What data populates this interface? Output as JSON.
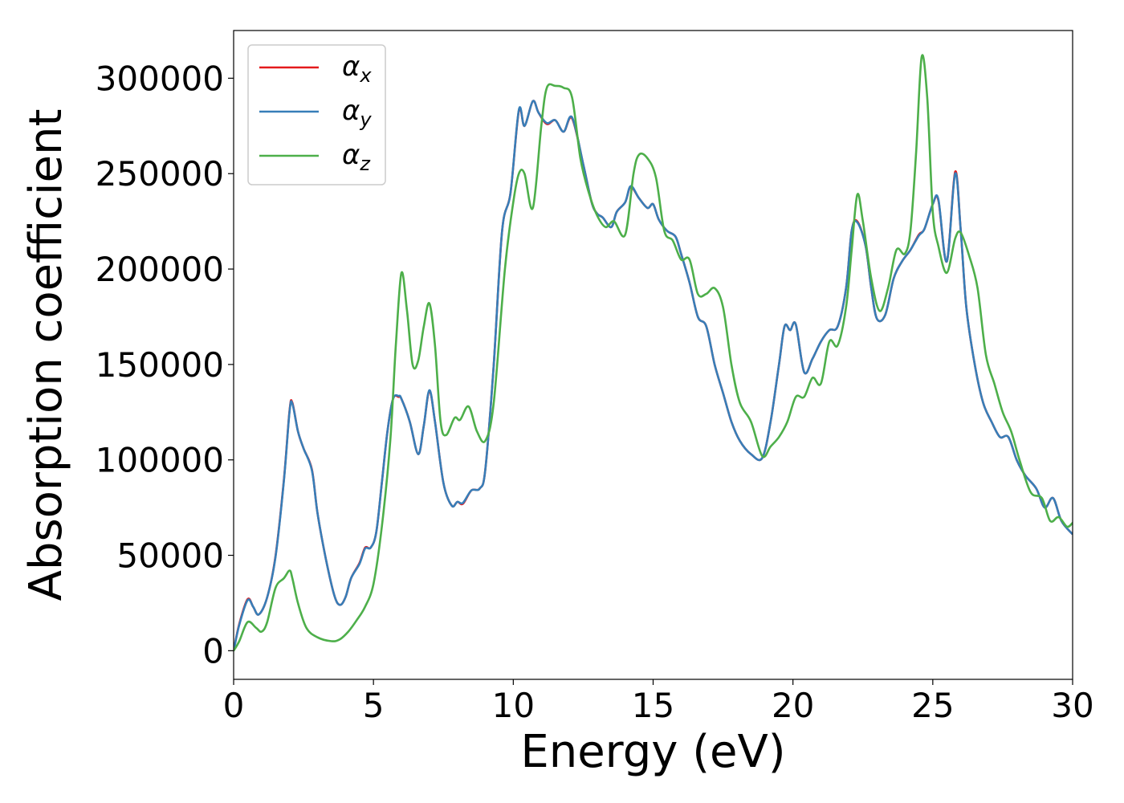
{
  "chart_data": {
    "type": "line",
    "title": "",
    "xlabel": "Energy (eV)",
    "ylabel": "Absorption coefficient",
    "xlim": [
      0,
      30
    ],
    "ylim": [
      -15000,
      325000
    ],
    "xticks": [
      0,
      5,
      10,
      15,
      20,
      25,
      30
    ],
    "yticks": [
      0,
      50000,
      100000,
      150000,
      200000,
      250000,
      300000
    ],
    "grid": false,
    "legend_position": "top-left",
    "series": [
      {
        "name": "αx",
        "legend_main": "α",
        "legend_sub": "x",
        "color": "#e41a1c",
        "x": [
          0,
          0.2,
          0.5,
          0.7,
          0.9,
          1.2,
          1.5,
          1.8,
          2.0,
          2.1,
          2.3,
          2.5,
          2.8,
          3.0,
          3.3,
          3.6,
          3.8,
          4.0,
          4.2,
          4.5,
          4.7,
          4.9,
          5.1,
          5.3,
          5.5,
          5.7,
          5.9,
          6.0,
          6.3,
          6.6,
          6.8,
          7.0,
          7.2,
          7.5,
          7.8,
          8.0,
          8.2,
          8.5,
          8.8,
          9.0,
          9.3,
          9.6,
          9.9,
          10.2,
          10.4,
          10.7,
          10.9,
          11.2,
          11.5,
          11.8,
          12.1,
          12.5,
          12.8,
          13.0,
          13.2,
          13.5,
          13.7,
          14.0,
          14.2,
          14.5,
          14.8,
          15.0,
          15.2,
          15.5,
          15.8,
          16.0,
          16.3,
          16.6,
          16.9,
          17.2,
          17.5,
          17.8,
          18.1,
          18.5,
          18.9,
          19.2,
          19.5,
          19.7,
          19.9,
          20.1,
          20.4,
          20.7,
          21.0,
          21.3,
          21.6,
          21.9,
          22.1,
          22.3,
          22.6,
          22.8,
          23.0,
          23.3,
          23.6,
          23.9,
          24.2,
          24.5,
          24.7,
          25.0,
          25.2,
          25.5,
          25.8,
          26.0,
          26.2,
          26.5,
          26.8,
          27.1,
          27.4,
          27.7,
          28.0,
          28.3,
          28.7,
          29.0,
          29.3,
          29.6,
          30.0
        ],
        "y": [
          0,
          14000,
          27000,
          23000,
          19000,
          28000,
          50000,
          90000,
          126000,
          130000,
          115000,
          106000,
          95000,
          72000,
          48000,
          29000,
          24000,
          28000,
          38000,
          46000,
          54000,
          54000,
          62000,
          88000,
          115000,
          132000,
          133000,
          132000,
          120000,
          103000,
          118000,
          136000,
          120000,
          88000,
          76000,
          78000,
          77000,
          84000,
          85000,
          95000,
          150000,
          220000,
          240000,
          283000,
          275000,
          288000,
          282000,
          276000,
          278000,
          272000,
          279000,
          255000,
          235000,
          229000,
          227000,
          222000,
          230000,
          235000,
          243000,
          237000,
          232000,
          234000,
          226000,
          220000,
          217000,
          208000,
          193000,
          175000,
          170000,
          150000,
          135000,
          120000,
          110000,
          103000,
          101000,
          120000,
          150000,
          170000,
          168000,
          171000,
          146000,
          153000,
          162000,
          168000,
          170000,
          190000,
          220000,
          225000,
          212000,
          190000,
          174000,
          176000,
          195000,
          204000,
          210000,
          218000,
          221000,
          234000,
          236000,
          204000,
          251000,
          220000,
          180000,
          150000,
          130000,
          120000,
          112000,
          112000,
          100000,
          92000,
          85000,
          75000,
          80000,
          68000,
          61000
        ]
      },
      {
        "name": "αy",
        "legend_main": "α",
        "legend_sub": "y",
        "color": "#377eb8",
        "x": [
          0,
          0.2,
          0.5,
          0.7,
          0.9,
          1.2,
          1.5,
          1.8,
          2.0,
          2.1,
          2.3,
          2.5,
          2.8,
          3.0,
          3.3,
          3.6,
          3.8,
          4.0,
          4.2,
          4.5,
          4.7,
          4.9,
          5.1,
          5.3,
          5.5,
          5.7,
          5.9,
          6.0,
          6.3,
          6.6,
          6.8,
          7.0,
          7.2,
          7.5,
          7.8,
          8.0,
          8.2,
          8.5,
          8.8,
          9.0,
          9.3,
          9.6,
          9.9,
          10.2,
          10.4,
          10.7,
          10.9,
          11.2,
          11.5,
          11.8,
          12.1,
          12.5,
          12.8,
          13.0,
          13.2,
          13.5,
          13.7,
          14.0,
          14.2,
          14.5,
          14.8,
          15.0,
          15.2,
          15.5,
          15.8,
          16.0,
          16.3,
          16.6,
          16.9,
          17.2,
          17.5,
          17.8,
          18.1,
          18.5,
          18.9,
          19.2,
          19.5,
          19.7,
          19.9,
          20.1,
          20.4,
          20.7,
          21.0,
          21.3,
          21.6,
          21.9,
          22.1,
          22.3,
          22.6,
          22.8,
          23.0,
          23.3,
          23.6,
          23.9,
          24.2,
          24.5,
          24.7,
          25.0,
          25.2,
          25.5,
          25.8,
          26.0,
          26.2,
          26.5,
          26.8,
          27.1,
          27.4,
          27.7,
          28.0,
          28.3,
          28.7,
          29.0,
          29.3,
          29.6,
          30.0
        ],
        "y": [
          0,
          13500,
          26500,
          23000,
          19000,
          28000,
          49500,
          89500,
          125500,
          129500,
          115000,
          106000,
          94500,
          72000,
          48000,
          29000,
          24000,
          28000,
          38000,
          45500,
          53500,
          54000,
          62000,
          88000,
          115000,
          132000,
          133500,
          132000,
          120000,
          103000,
          118000,
          136500,
          120000,
          88000,
          76000,
          78000,
          77500,
          84000,
          85000,
          95000,
          150000,
          220000,
          240000,
          283500,
          275000,
          288000,
          282000,
          276500,
          278000,
          272000,
          279500,
          255000,
          235000,
          229000,
          227000,
          222000,
          230000,
          235000,
          243500,
          237000,
          232000,
          234000,
          226000,
          220000,
          217000,
          208000,
          193000,
          175000,
          170000,
          150000,
          135000,
          120000,
          110000,
          103000,
          101000,
          120000,
          150000,
          170000,
          168000,
          171000,
          146000,
          153000,
          162000,
          168000,
          170000,
          190000,
          220000,
          224500,
          212000,
          190000,
          174000,
          176000,
          195000,
          204000,
          210000,
          217500,
          221000,
          234000,
          236500,
          204000,
          250000,
          220000,
          180000,
          150000,
          130000,
          120000,
          112000,
          112000,
          100000,
          92000,
          85000,
          75000,
          80000,
          68000,
          61000
        ]
      },
      {
        "name": "αz",
        "legend_main": "α",
        "legend_sub": "z",
        "color": "#4daf4a",
        "x": [
          0,
          0.2,
          0.5,
          0.8,
          1.0,
          1.2,
          1.5,
          1.8,
          2.0,
          2.1,
          2.3,
          2.6,
          3.0,
          3.5,
          3.8,
          4.1,
          4.4,
          4.7,
          5.0,
          5.3,
          5.6,
          5.8,
          6.0,
          6.2,
          6.4,
          6.6,
          6.8,
          7.0,
          7.2,
          7.4,
          7.6,
          7.9,
          8.1,
          8.4,
          8.7,
          9.0,
          9.3,
          9.7,
          10.0,
          10.2,
          10.4,
          10.7,
          11.0,
          11.2,
          11.5,
          11.8,
          12.1,
          12.4,
          12.7,
          13.0,
          13.3,
          13.6,
          14.0,
          14.3,
          14.5,
          14.8,
          15.1,
          15.4,
          15.7,
          16.0,
          16.3,
          16.6,
          16.9,
          17.2,
          17.5,
          17.8,
          18.1,
          18.5,
          18.9,
          19.2,
          19.5,
          19.8,
          20.1,
          20.4,
          20.7,
          21.0,
          21.3,
          21.6,
          21.9,
          22.1,
          22.3,
          22.5,
          22.8,
          23.1,
          23.4,
          23.7,
          24.0,
          24.2,
          24.4,
          24.6,
          24.8,
          25.0,
          25.2,
          25.5,
          25.8,
          26.0,
          26.3,
          26.6,
          26.9,
          27.2,
          27.5,
          27.8,
          28.1,
          28.5,
          28.9,
          29.2,
          29.5,
          29.8,
          30.0
        ],
        "y": [
          0,
          5000,
          15000,
          12000,
          10000,
          15000,
          33000,
          38000,
          42000,
          38000,
          25000,
          12000,
          7000,
          5000,
          6000,
          10000,
          16000,
          23000,
          35000,
          65000,
          110000,
          160000,
          198000,
          178000,
          150000,
          152000,
          170000,
          182000,
          160000,
          120000,
          113000,
          122000,
          121000,
          128000,
          115000,
          110000,
          130000,
          200000,
          235000,
          250000,
          250000,
          232000,
          275000,
          295000,
          296000,
          295000,
          290000,
          258000,
          240000,
          228000,
          222000,
          225000,
          218000,
          250000,
          260000,
          258000,
          248000,
          220000,
          215000,
          205000,
          205000,
          187000,
          187000,
          190000,
          180000,
          150000,
          130000,
          120000,
          102000,
          107000,
          112000,
          120000,
          133000,
          133000,
          143000,
          140000,
          162000,
          160000,
          180000,
          210000,
          239000,
          225000,
          195000,
          178000,
          190000,
          210000,
          208000,
          220000,
          260000,
          311000,
          290000,
          230000,
          212000,
          198000,
          216000,
          219000,
          207000,
          190000,
          155000,
          140000,
          125000,
          115000,
          100000,
          83000,
          80000,
          68000,
          70000,
          65000,
          67000
        ]
      }
    ]
  }
}
